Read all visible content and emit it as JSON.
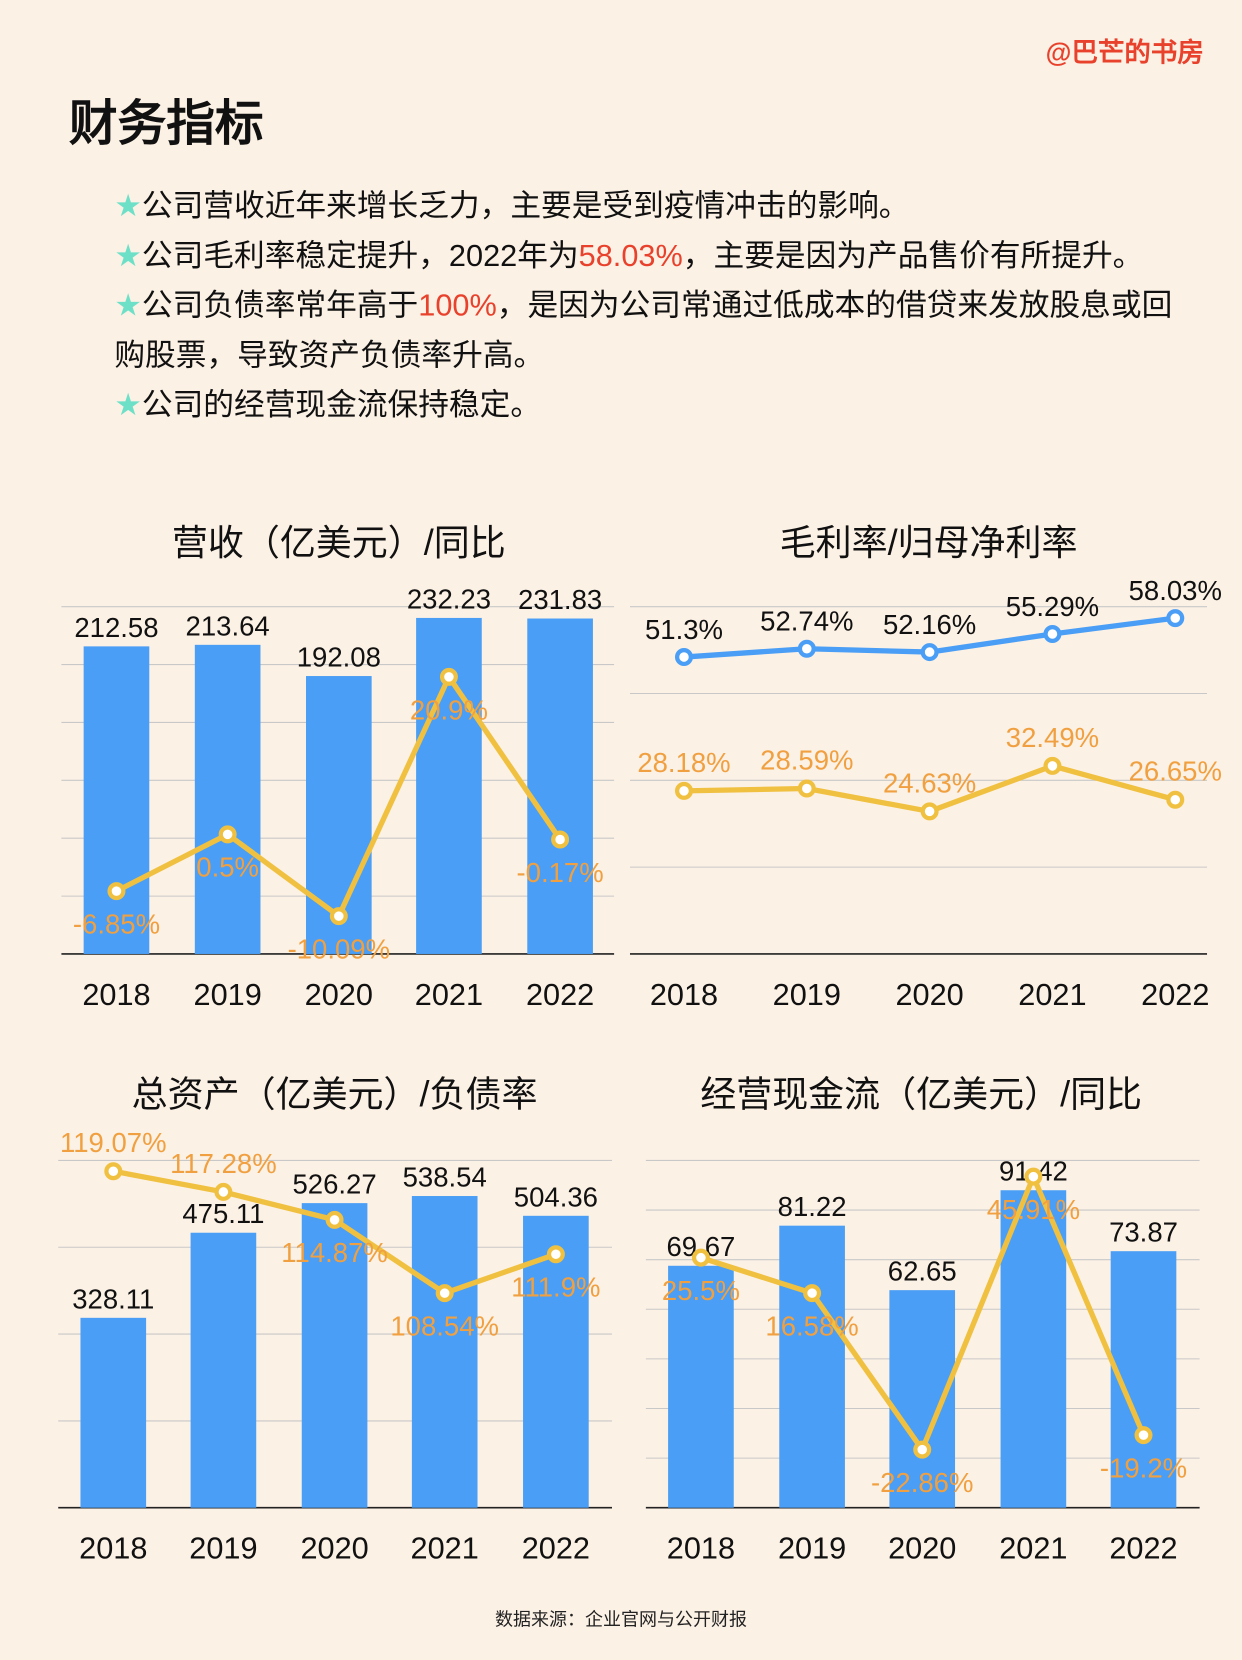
{
  "watermark": "@巴芒的书房",
  "title": "财务指标",
  "bullets": [
    {
      "star": "★",
      "parts": [
        "公司营收近年来增长乏力，主要是受到疫情冲击的影响。",
        "",
        ""
      ]
    },
    {
      "star": "★",
      "parts": [
        "公司毛利率稳定提升，2022年为",
        "58.03%",
        "，主要是因为产品售价有所提升。"
      ]
    },
    {
      "star": "★",
      "parts": [
        "公司负债率常年高于",
        "100%",
        "，是因为公司常通过低成本的借贷来发放股息或回购股票，导致资产负债率升高。"
      ]
    },
    {
      "star": "★",
      "parts": [
        "公司的经营现金流保持稳定。",
        "",
        ""
      ]
    }
  ],
  "colors": {
    "bar": "#4a9ef5",
    "line": "#f0c040",
    "line_label": "#f0a040",
    "line_blue": "#4a9ef5",
    "highlight": "#e8412c",
    "star": "#6ee0c8",
    "background": "#fcf1e5"
  },
  "chart_data": [
    {
      "type": "bar+line",
      "title": "营收（亿美元）/同比",
      "categories": [
        "2018",
        "2019",
        "2020",
        "2021",
        "2022"
      ],
      "series": [
        {
          "kind": "bar",
          "values": [
            212.58,
            213.64,
            192.08,
            232.23,
            231.83
          ],
          "labels": [
            "212.58",
            "213.64",
            "192.08",
            "232.23",
            "231.83"
          ],
          "ylim": [
            0,
            240
          ]
        },
        {
          "kind": "line",
          "values": [
            -6.85,
            0.5,
            -10.09,
            20.9,
            -0.17
          ],
          "labels": [
            "-6.85%",
            "0.5%",
            "-10.09%",
            "20.9%",
            "-0.17%"
          ],
          "ylim": [
            -15,
            30
          ]
        }
      ],
      "grid": true
    },
    {
      "type": "line",
      "title": "毛利率/归母净利率",
      "categories": [
        "2018",
        "2019",
        "2020",
        "2021",
        "2022"
      ],
      "series": [
        {
          "kind": "line",
          "color": "#4a9ef5",
          "values": [
            51.3,
            52.74,
            52.16,
            55.29,
            58.03
          ],
          "labels": [
            "51.3%",
            "52.74%",
            "52.16%",
            "55.29%",
            "58.03%"
          ],
          "ylim": [
            0,
            60
          ]
        },
        {
          "kind": "line",
          "color": "#f0c040",
          "values": [
            28.18,
            28.59,
            24.63,
            32.49,
            26.65
          ],
          "labels": [
            "28.18%",
            "28.59%",
            "24.63%",
            "32.49%",
            "26.65%"
          ],
          "ylim": [
            0,
            60
          ]
        }
      ],
      "grid": true
    },
    {
      "type": "bar+line",
      "title": "总资产（亿美元）/负债率",
      "categories": [
        "2018",
        "2019",
        "2020",
        "2021",
        "2022"
      ],
      "series": [
        {
          "kind": "bar",
          "values": [
            328.11,
            475.11,
            526.27,
            538.54,
            504.36
          ],
          "labels": [
            "328.11",
            "475.11",
            "526.27",
            "538.54",
            "504.36"
          ],
          "ylim": [
            0,
            600
          ]
        },
        {
          "kind": "line",
          "values": [
            119.07,
            117.28,
            114.87,
            108.54,
            111.9
          ],
          "labels": [
            "119.07%",
            "117.28%",
            "114.87%",
            "108.54%",
            "111.9%"
          ],
          "ylim": [
            90,
            120
          ]
        }
      ],
      "grid": true
    },
    {
      "type": "bar+line",
      "title": "经营现金流（亿美元）/同比",
      "categories": [
        "2018",
        "2019",
        "2020",
        "2021",
        "2022"
      ],
      "series": [
        {
          "kind": "bar",
          "values": [
            69.67,
            81.22,
            62.65,
            91.42,
            73.87
          ],
          "labels": [
            "69.67",
            "81.22",
            "62.65",
            "91.42",
            "73.87"
          ],
          "ylim": [
            0,
            100
          ]
        },
        {
          "kind": "line",
          "values": [
            25.5,
            16.58,
            -22.86,
            45.91,
            -19.2
          ],
          "labels": [
            "25.5%",
            "16.58%",
            "-22.86%",
            "45.91%",
            "-19.2%"
          ],
          "ylim": [
            -37.5,
            50
          ]
        }
      ],
      "grid": true
    }
  ],
  "source": "数据来源：企业官网与公开财报"
}
